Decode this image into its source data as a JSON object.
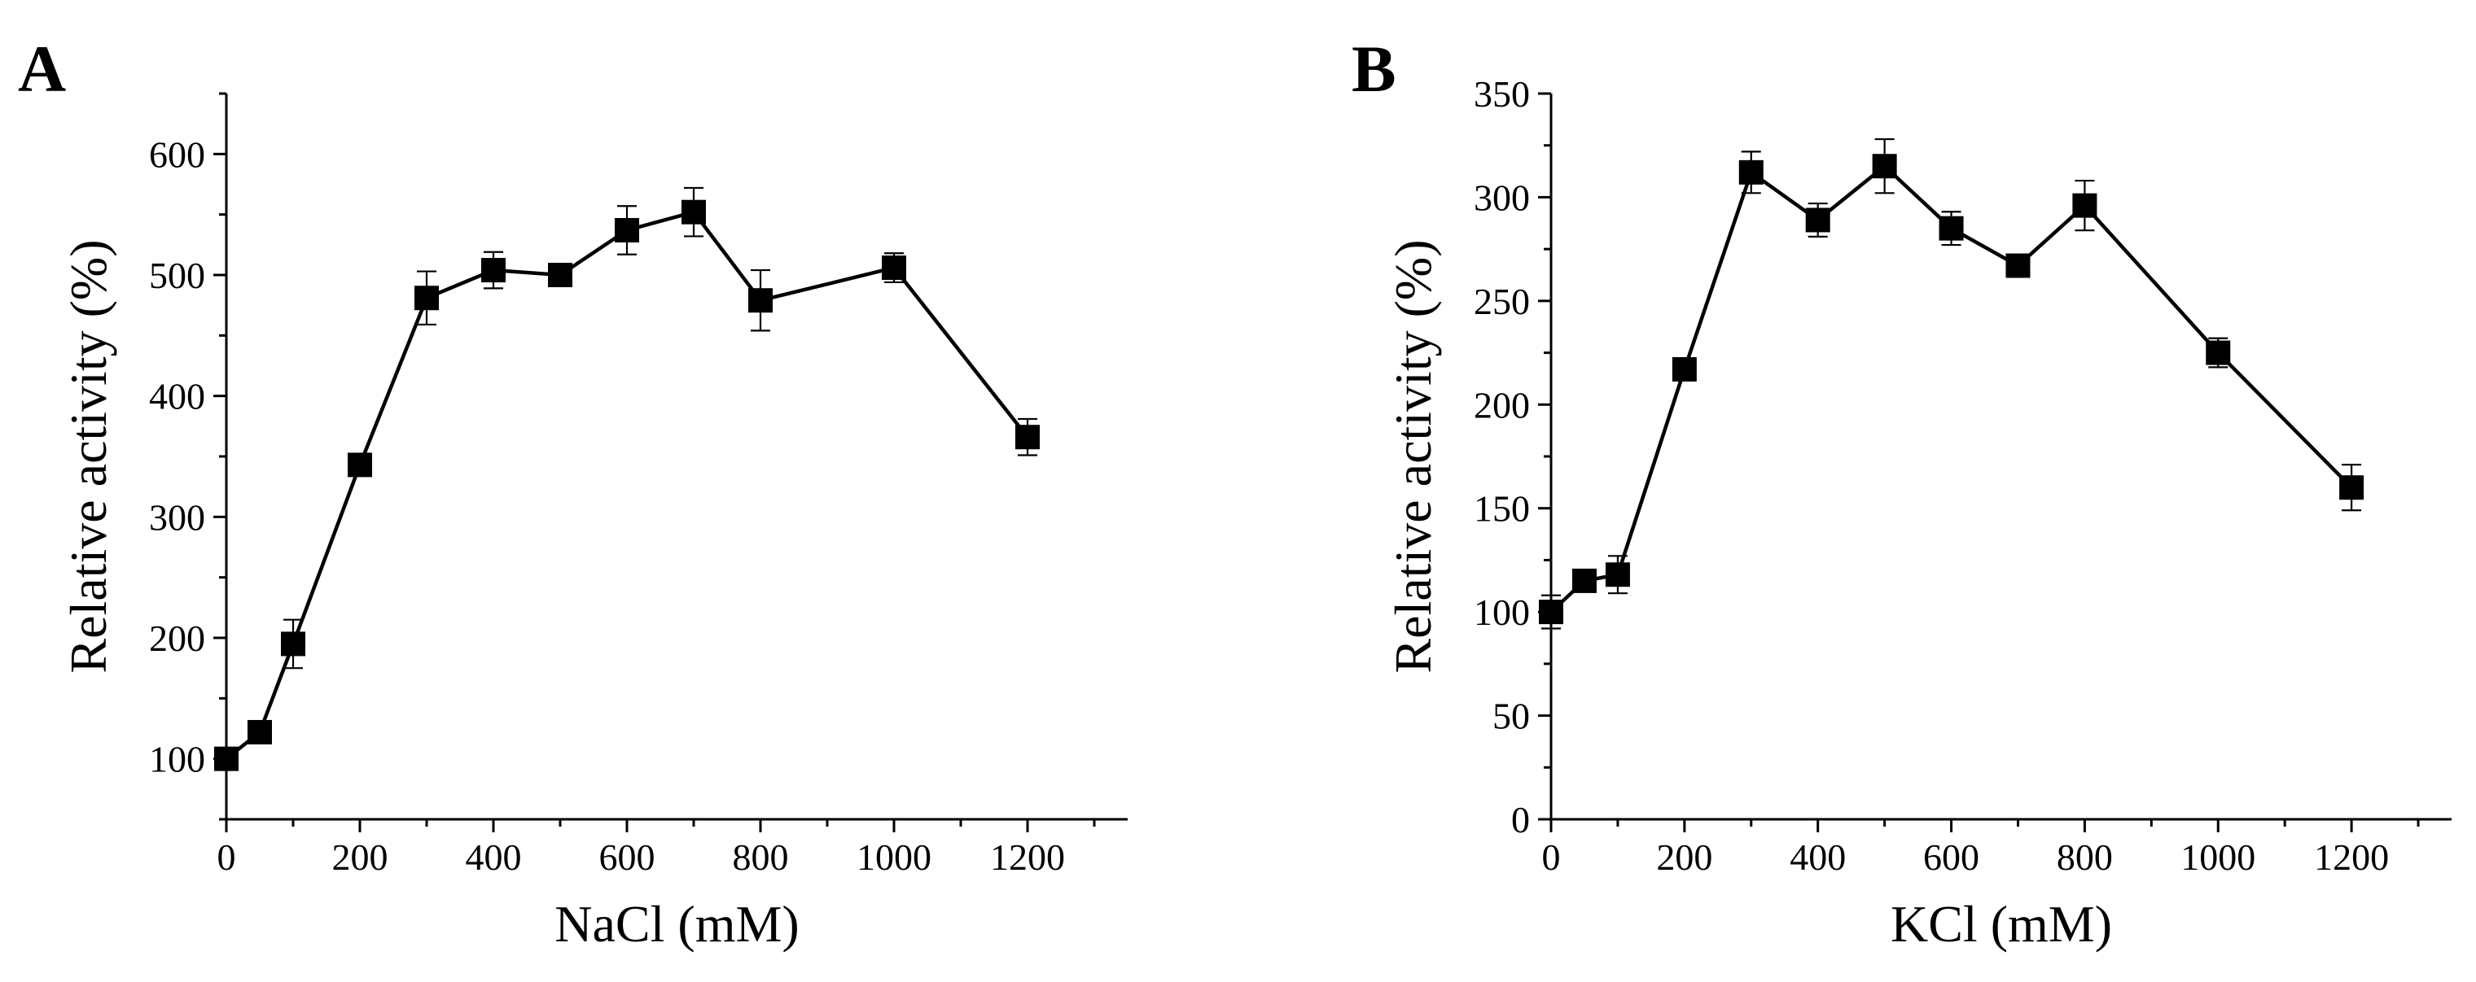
{
  "chart_data": [
    {
      "type": "line",
      "panel_label": "A",
      "title": "",
      "xlabel": "NaCl (mM)",
      "ylabel": "Relative activity (%)",
      "xlim": [
        0,
        1350
      ],
      "ylim": [
        50,
        650
      ],
      "xticks": [
        0,
        200,
        400,
        600,
        800,
        1000,
        1200
      ],
      "yticks": [
        100,
        200,
        300,
        400,
        500,
        600
      ],
      "series": [
        {
          "name": "NaCl",
          "x": [
            0,
            50,
            100,
            200,
            300,
            400,
            500,
            600,
            700,
            800,
            1000,
            1200
          ],
          "values": [
            100,
            122,
            195,
            343,
            481,
            504,
            500,
            537,
            552,
            479,
            506,
            366
          ],
          "errors": [
            8,
            6,
            20,
            7,
            22,
            15,
            8,
            20,
            20,
            25,
            12,
            15
          ]
        }
      ]
    },
    {
      "type": "line",
      "panel_label": "B",
      "title": "",
      "xlabel": "KCl (mM)",
      "ylabel": "Relative activity (%)",
      "xlim": [
        0,
        1350
      ],
      "ylim": [
        0,
        350
      ],
      "xticks": [
        0,
        200,
        400,
        600,
        800,
        1000,
        1200
      ],
      "yticks": [
        0,
        50,
        100,
        150,
        200,
        250,
        300,
        350
      ],
      "series": [
        {
          "name": "KCl",
          "x": [
            0,
            50,
            100,
            200,
            300,
            400,
            500,
            600,
            700,
            800,
            1000,
            1200
          ],
          "values": [
            100,
            115,
            118,
            217,
            312,
            289,
            315,
            285,
            267,
            296,
            225,
            160
          ],
          "errors": [
            8,
            5,
            9,
            4,
            10,
            8,
            13,
            8,
            4,
            12,
            7,
            11
          ]
        }
      ]
    }
  ],
  "colors": {
    "ink": "#000000",
    "background": "#ffffff"
  }
}
